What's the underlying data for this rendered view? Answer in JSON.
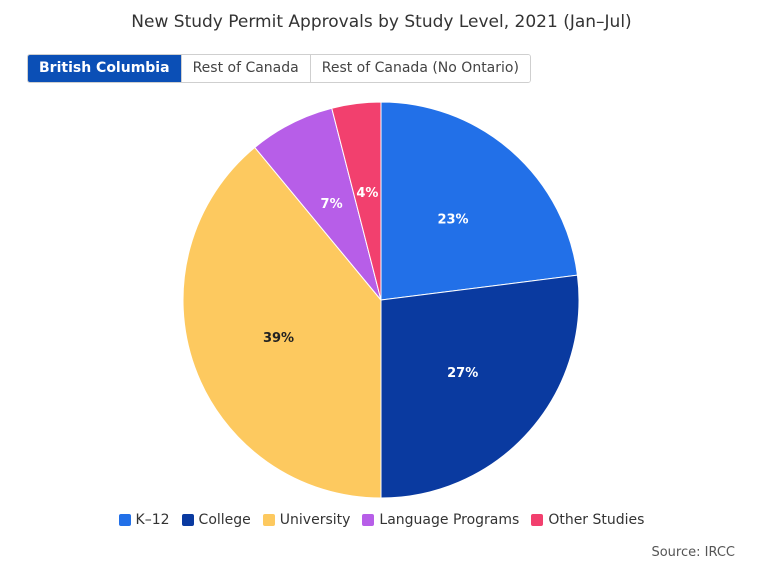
{
  "title": "New Study Permit Approvals by Study Level, 2021 (Jan–Jul)",
  "tabs": [
    {
      "label": "British Columbia",
      "active": true
    },
    {
      "label": "Rest of Canada",
      "active": false
    },
    {
      "label": "Rest of Canada (No Ontario)",
      "active": false
    }
  ],
  "source": "Source: IRCC",
  "chart_data": {
    "type": "pie",
    "title": "New Study Permit Approvals by Study Level, 2021 (Jan–Jul)",
    "categories": [
      "K–12",
      "College",
      "University",
      "Language Programs",
      "Other Studies"
    ],
    "values": [
      23,
      27,
      39,
      7,
      4
    ],
    "labels": [
      "23%",
      "27%",
      "39%",
      "7%",
      "4%"
    ],
    "colors": [
      "#2270e8",
      "#0a3aa0",
      "#fdc95f",
      "#b75ee8",
      "#f2406e"
    ],
    "label_colors": [
      "#ffffff",
      "#ffffff",
      "#222222",
      "#ffffff",
      "#ffffff"
    ],
    "legend_position": "bottom"
  }
}
